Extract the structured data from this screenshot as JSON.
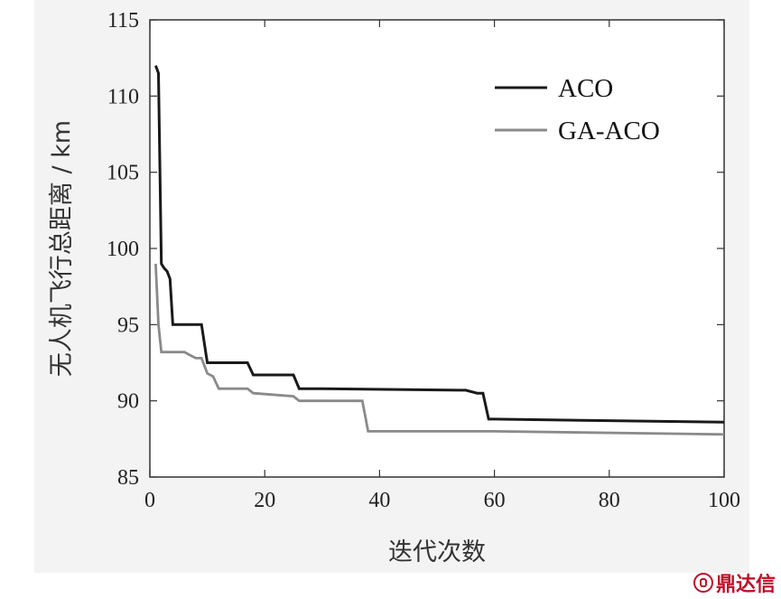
{
  "chart_data": {
    "type": "line",
    "title": "",
    "xlabel": "迭代次数",
    "ylabel": "无人机飞行总距离 / km",
    "xlim": [
      0,
      100
    ],
    "ylim": [
      85,
      115
    ],
    "xticks": [
      0,
      20,
      40,
      60,
      80,
      100
    ],
    "yticks": [
      85,
      90,
      95,
      100,
      105,
      110,
      115
    ],
    "grid": false,
    "legend_position": "top-right",
    "series": [
      {
        "name": "ACO",
        "color": "#1a1a1a",
        "x": [
          1,
          1.5,
          2,
          2.5,
          3,
          3.5,
          4,
          8,
          9,
          10,
          12,
          17,
          18,
          20,
          25,
          26,
          30,
          55,
          57,
          58,
          59,
          60,
          100
        ],
        "y": [
          112,
          111.5,
          99,
          98.7,
          98.5,
          98,
          95,
          95,
          95,
          92.5,
          92.5,
          92.5,
          91.7,
          91.7,
          91.7,
          90.8,
          90.8,
          90.7,
          90.5,
          90.5,
          88.8,
          88.8,
          88.6
        ]
      },
      {
        "name": "GA-ACO",
        "color": "#8a8a8a",
        "x": [
          1,
          1.5,
          2,
          6,
          7,
          8,
          9,
          10,
          11,
          12,
          17,
          18,
          25,
          26,
          37,
          38,
          40,
          60,
          100
        ],
        "y": [
          99,
          95,
          93.2,
          93.2,
          93,
          92.8,
          92.8,
          91.8,
          91.6,
          90.8,
          90.8,
          90.5,
          90.3,
          90,
          90,
          88,
          88,
          88,
          87.8
        ]
      }
    ]
  },
  "watermark": {
    "text": "鼎达信",
    "color": "#c0102a"
  }
}
